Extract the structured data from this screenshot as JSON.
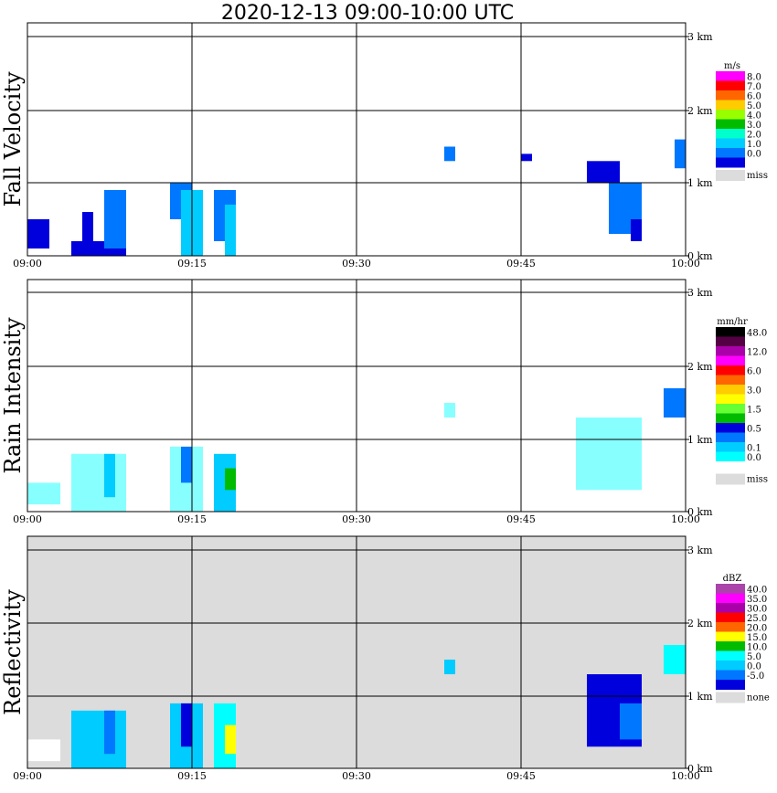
{
  "title": "2020-12-13   09:00-10:00 UTC",
  "time_ticks": [
    "09:00",
    "09:15",
    "09:30",
    "09:45",
    "10:00"
  ],
  "height_ticks": [
    "0 km",
    "1 km",
    "2 km",
    "3 km"
  ],
  "chart_data": [
    {
      "type": "heatmap",
      "title": "Fall Velocity",
      "ylabel": "Fall Velocity",
      "colorbar_unit": "m/s",
      "x_range": [
        "09:00",
        "10:00"
      ],
      "y_range_km": [
        0,
        3.1
      ],
      "colorbar": [
        {
          "label": "8.0",
          "color": "#ff00ff"
        },
        {
          "label": "7.0",
          "color": "#ff0000"
        },
        {
          "label": "6.0",
          "color": "#ff6600"
        },
        {
          "label": "5.0",
          "color": "#ffcc00"
        },
        {
          "label": "4.0",
          "color": "#99ff00"
        },
        {
          "label": "3.0",
          "color": "#00bb00"
        },
        {
          "label": "2.0",
          "color": "#00ffcc"
        },
        {
          "label": "1.0",
          "color": "#00ccff"
        },
        {
          "label": "0.0",
          "color": "#0077ff"
        },
        {
          "label": "",
          "color": "#0000dd"
        }
      ],
      "missing_label": "miss",
      "missing_color": "#dcdcdc",
      "background": "#ffffff",
      "echoes": [
        {
          "t0": "09:00",
          "t1": "09:02",
          "z0": 0.1,
          "z1": 0.5,
          "color": "#0000dd"
        },
        {
          "t0": "09:04",
          "t1": "09:09",
          "z0": 0.0,
          "z1": 0.2,
          "color": "#0000dd"
        },
        {
          "t0": "09:05",
          "t1": "09:06",
          "z0": 0.2,
          "z1": 0.6,
          "color": "#0000dd"
        },
        {
          "t0": "09:07",
          "t1": "09:09",
          "z0": 0.1,
          "z1": 0.9,
          "color": "#0077ff"
        },
        {
          "t0": "09:13",
          "t1": "09:15",
          "z0": 0.5,
          "z1": 1.0,
          "color": "#0077ff"
        },
        {
          "t0": "09:14",
          "t1": "09:16",
          "z0": 0.0,
          "z1": 0.9,
          "color": "#00ccff"
        },
        {
          "t0": "09:17",
          "t1": "09:19",
          "z0": 0.2,
          "z1": 0.9,
          "color": "#0077ff"
        },
        {
          "t0": "09:18",
          "t1": "09:19",
          "z0": 0.0,
          "z1": 0.7,
          "color": "#00ccff"
        },
        {
          "t0": "09:38",
          "t1": "09:39",
          "z0": 1.3,
          "z1": 1.5,
          "color": "#0077ff"
        },
        {
          "t0": "09:45",
          "t1": "09:46",
          "z0": 1.3,
          "z1": 1.4,
          "color": "#0000dd"
        },
        {
          "t0": "09:51",
          "t1": "09:54",
          "z0": 1.0,
          "z1": 1.3,
          "color": "#0000dd"
        },
        {
          "t0": "09:53",
          "t1": "09:56",
          "z0": 0.3,
          "z1": 1.0,
          "color": "#0077ff"
        },
        {
          "t0": "09:55",
          "t1": "09:56",
          "z0": 0.2,
          "z1": 0.5,
          "color": "#0000dd"
        },
        {
          "t0": "09:59",
          "t1": "10:00",
          "z0": 1.2,
          "z1": 1.6,
          "color": "#0077ff"
        }
      ]
    },
    {
      "type": "heatmap",
      "title": "Rain Intensity",
      "ylabel": "Rain Intensity",
      "colorbar_unit": "mm/hr",
      "x_range": [
        "09:00",
        "10:00"
      ],
      "y_range_km": [
        0,
        3.1
      ],
      "colorbar": [
        {
          "label": "48.0",
          "color": "#000000"
        },
        {
          "label": "",
          "color": "#550044"
        },
        {
          "label": "12.0",
          "color": "#aa00aa"
        },
        {
          "label": "",
          "color": "#ff00ff"
        },
        {
          "label": "6.0",
          "color": "#ff0000"
        },
        {
          "label": "",
          "color": "#ff6600"
        },
        {
          "label": "3.0",
          "color": "#ffcc00"
        },
        {
          "label": "",
          "color": "#ffff00"
        },
        {
          "label": "1.5",
          "color": "#66ff33"
        },
        {
          "label": "",
          "color": "#00bb00"
        },
        {
          "label": "0.5",
          "color": "#0000dd"
        },
        {
          "label": "",
          "color": "#0077ff"
        },
        {
          "label": "0.1",
          "color": "#00ccff"
        },
        {
          "label": "0.0",
          "color": "#00ffff"
        },
        {
          "label": "",
          "color": "#ffffff"
        }
      ],
      "missing_label": "miss",
      "missing_color": "#dcdcdc",
      "background": "#ffffff",
      "echoes": [
        {
          "t0": "09:00",
          "t1": "09:03",
          "z0": 0.1,
          "z1": 0.4,
          "color": "#88ffff"
        },
        {
          "t0": "09:04",
          "t1": "09:09",
          "z0": 0.0,
          "z1": 0.8,
          "color": "#88ffff"
        },
        {
          "t0": "09:07",
          "t1": "09:08",
          "z0": 0.2,
          "z1": 0.8,
          "color": "#00ccff"
        },
        {
          "t0": "09:13",
          "t1": "09:16",
          "z0": 0.0,
          "z1": 0.9,
          "color": "#88ffff"
        },
        {
          "t0": "09:14",
          "t1": "09:15",
          "z0": 0.4,
          "z1": 0.9,
          "color": "#0077ff"
        },
        {
          "t0": "09:17",
          "t1": "09:19",
          "z0": 0.0,
          "z1": 0.8,
          "color": "#00ccff"
        },
        {
          "t0": "09:18",
          "t1": "09:19",
          "z0": 0.3,
          "z1": 0.6,
          "color": "#00bb00"
        },
        {
          "t0": "09:38",
          "t1": "09:39",
          "z0": 1.3,
          "z1": 1.5,
          "color": "#88ffff"
        },
        {
          "t0": "09:50",
          "t1": "09:56",
          "z0": 0.3,
          "z1": 1.3,
          "color": "#88ffff"
        },
        {
          "t0": "09:58",
          "t1": "10:00",
          "z0": 1.3,
          "z1": 1.7,
          "color": "#0077ff"
        }
      ]
    },
    {
      "type": "heatmap",
      "title": "Reflectivity",
      "ylabel": "Reflectivity",
      "colorbar_unit": "dBZ",
      "x_range": [
        "09:00",
        "10:00"
      ],
      "y_range_km": [
        0,
        3.1
      ],
      "colorbar": [
        {
          "label": "40.0",
          "color": "#aa44aa"
        },
        {
          "label": "35.0",
          "color": "#ff00ff"
        },
        {
          "label": "30.0",
          "color": "#aa00aa"
        },
        {
          "label": "25.0",
          "color": "#ff0000"
        },
        {
          "label": "20.0",
          "color": "#ff6600"
        },
        {
          "label": "15.0",
          "color": "#ffff00"
        },
        {
          "label": "10.0",
          "color": "#00bb00"
        },
        {
          "label": "5.0",
          "color": "#00ffff"
        },
        {
          "label": "0.0",
          "color": "#00ccff"
        },
        {
          "label": "-5.0",
          "color": "#0077ff"
        },
        {
          "label": "",
          "color": "#0000dd"
        }
      ],
      "missing_label": "none",
      "missing_color": "#dcdcdc",
      "background": "#dcdcdc",
      "echoes": [
        {
          "t0": "09:00",
          "t1": "09:03",
          "z0": 0.1,
          "z1": 0.4,
          "color": "#ffffff"
        },
        {
          "t0": "09:04",
          "t1": "09:09",
          "z0": 0.0,
          "z1": 0.8,
          "color": "#00ccff"
        },
        {
          "t0": "09:07",
          "t1": "09:08",
          "z0": 0.2,
          "z1": 0.8,
          "color": "#0077ff"
        },
        {
          "t0": "09:13",
          "t1": "09:16",
          "z0": 0.0,
          "z1": 0.9,
          "color": "#00ccff"
        },
        {
          "t0": "09:14",
          "t1": "09:15",
          "z0": 0.3,
          "z1": 0.9,
          "color": "#0000dd"
        },
        {
          "t0": "09:17",
          "t1": "09:19",
          "z0": 0.0,
          "z1": 0.9,
          "color": "#00ffff"
        },
        {
          "t0": "09:18",
          "t1": "09:19",
          "z0": 0.2,
          "z1": 0.6,
          "color": "#ffff00"
        },
        {
          "t0": "09:38",
          "t1": "09:39",
          "z0": 1.3,
          "z1": 1.5,
          "color": "#00ccff"
        },
        {
          "t0": "09:51",
          "t1": "09:56",
          "z0": 0.3,
          "z1": 1.3,
          "color": "#0000dd"
        },
        {
          "t0": "09:54",
          "t1": "09:56",
          "z0": 0.4,
          "z1": 0.9,
          "color": "#0077ff"
        },
        {
          "t0": "09:58",
          "t1": "10:00",
          "z0": 1.3,
          "z1": 1.7,
          "color": "#00ffff"
        }
      ]
    }
  ]
}
